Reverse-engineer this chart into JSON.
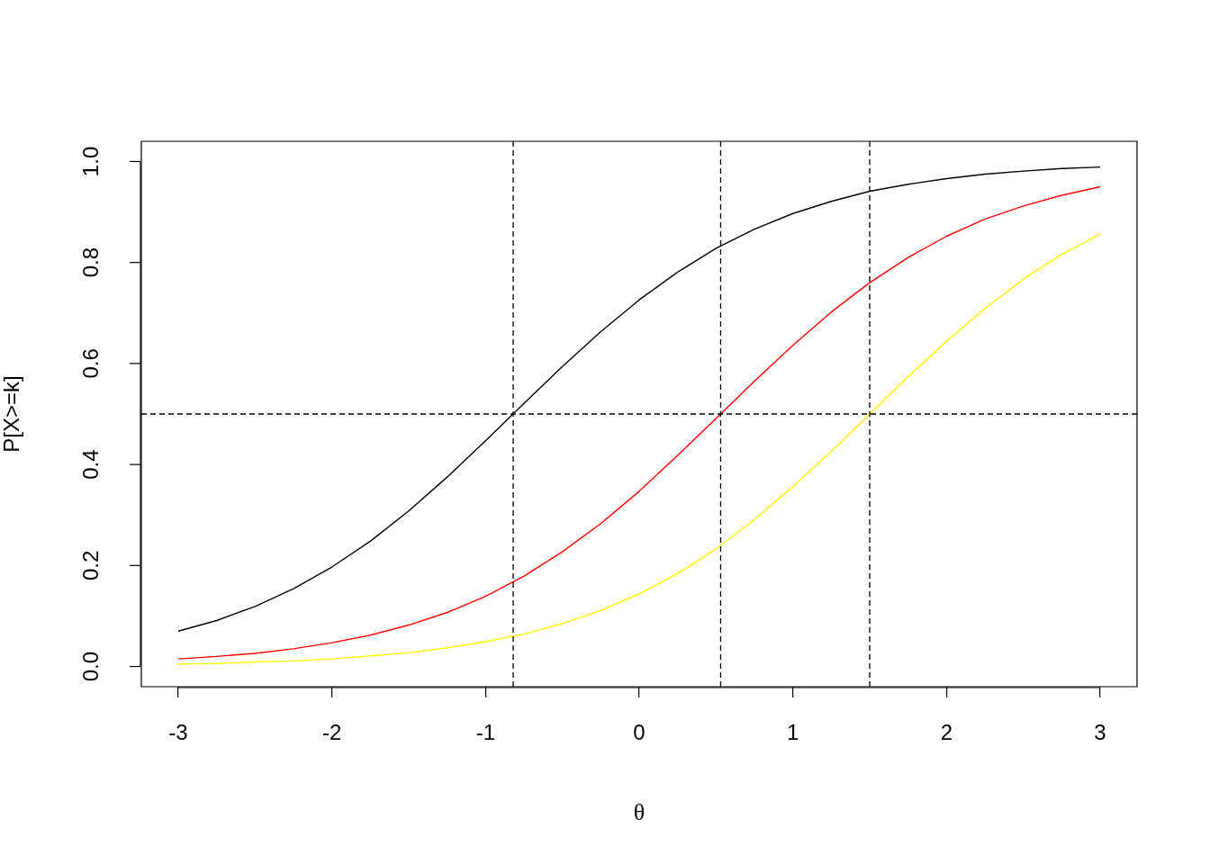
{
  "chart_data": {
    "type": "line",
    "xlabel": "θ",
    "ylabel": "P[X>=k]",
    "x": [
      -3,
      -2.75,
      -2.5,
      -2.25,
      -2,
      -1.75,
      -1.5,
      -1.25,
      -1,
      -0.75,
      -0.5,
      -0.25,
      0,
      0.25,
      0.5,
      0.75,
      1,
      1.25,
      1.5,
      1.75,
      2,
      2.25,
      2.5,
      2.75,
      3
    ],
    "series": [
      {
        "color": "#000000",
        "values": [
          0.07,
          0.091,
          0.119,
          0.154,
          0.197,
          0.248,
          0.308,
          0.375,
          0.447,
          0.521,
          0.594,
          0.663,
          0.726,
          0.781,
          0.828,
          0.866,
          0.897,
          0.921,
          0.941,
          0.955,
          0.966,
          0.975,
          0.981,
          0.986,
          0.989
        ]
      },
      {
        "color": "#ff0000",
        "values": [
          0.015,
          0.02,
          0.026,
          0.035,
          0.047,
          0.062,
          0.082,
          0.107,
          0.139,
          0.179,
          0.227,
          0.283,
          0.347,
          0.418,
          0.491,
          0.565,
          0.636,
          0.702,
          0.76,
          0.81,
          0.852,
          0.886,
          0.912,
          0.933,
          0.95
        ]
      },
      {
        "color": "#ffff00",
        "values": [
          0.005,
          0.006,
          0.009,
          0.011,
          0.015,
          0.021,
          0.027,
          0.037,
          0.049,
          0.064,
          0.085,
          0.111,
          0.144,
          0.184,
          0.233,
          0.291,
          0.356,
          0.426,
          0.5,
          0.574,
          0.644,
          0.709,
          0.767,
          0.816,
          0.856
        ]
      }
    ],
    "xlim": [
      -3.24,
      3.24
    ],
    "ylim": [
      -0.04,
      1.04
    ],
    "xticks": [
      -3,
      -2,
      -1,
      0,
      1,
      2,
      3
    ],
    "yticks": [
      {
        "value": 0,
        "label": "0.0"
      },
      {
        "value": 0.2,
        "label": "0.2"
      },
      {
        "value": 0.4,
        "label": "0.4"
      },
      {
        "value": 0.6,
        "label": "0.6"
      },
      {
        "value": 0.8,
        "label": "0.8"
      },
      {
        "value": 1,
        "label": "1.0"
      }
    ],
    "ref_lines": [
      {
        "axis": "x",
        "value": -0.82,
        "color": "#000000",
        "line_style": "dashed"
      },
      {
        "axis": "x",
        "value": 0.53,
        "color": "#000000",
        "line_style": "dashed"
      },
      {
        "axis": "x",
        "value": 1.5,
        "color": "#000000",
        "line_style": "dashed"
      },
      {
        "axis": "y",
        "value": 0.5,
        "color": "#000000",
        "line_style": "dashed"
      }
    ],
    "grid": false,
    "legend": false,
    "marker": "none",
    "line_style": "solid"
  }
}
